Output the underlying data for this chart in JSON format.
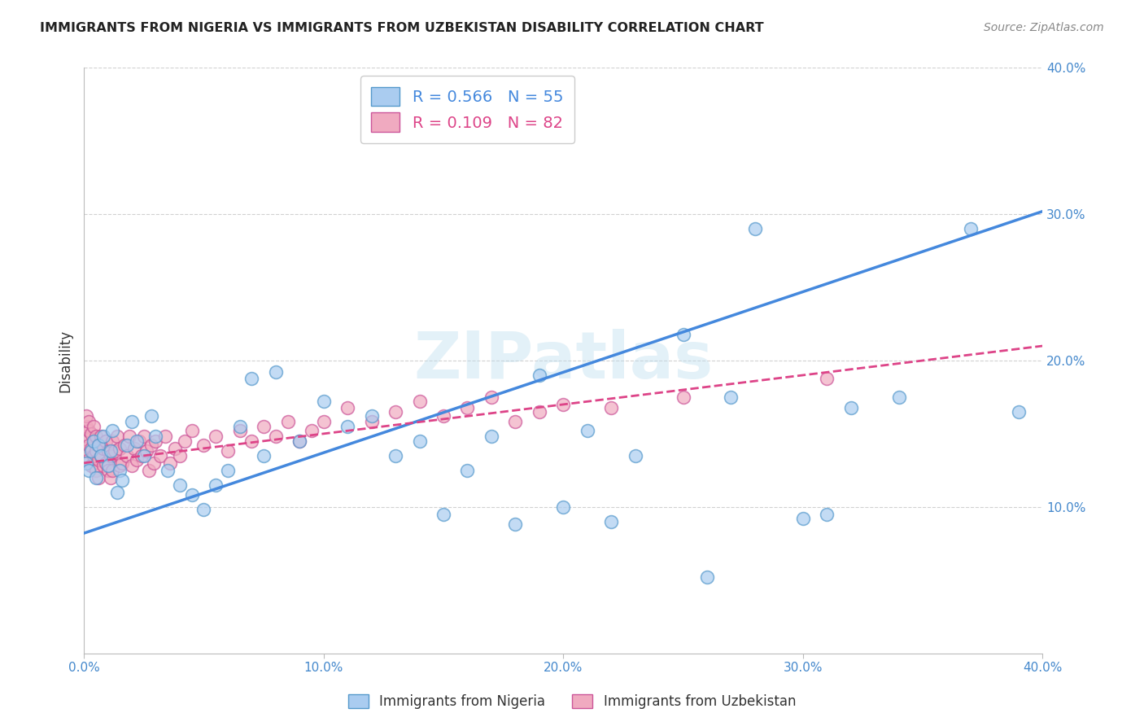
{
  "title": "IMMIGRANTS FROM NIGERIA VS IMMIGRANTS FROM UZBEKISTAN DISABILITY CORRELATION CHART",
  "source": "Source: ZipAtlas.com",
  "ylabel": "Disability",
  "xlim": [
    0.0,
    0.4
  ],
  "ylim": [
    0.0,
    0.4
  ],
  "xticks": [
    0.0,
    0.1,
    0.2,
    0.3,
    0.4
  ],
  "yticks": [
    0.1,
    0.2,
    0.3,
    0.4
  ],
  "xticklabels": [
    "0.0%",
    "10.0%",
    "20.0%",
    "30.0%",
    "40.0%"
  ],
  "yticklabels": [
    "10.0%",
    "20.0%",
    "30.0%",
    "40.0%"
  ],
  "nigeria_color": "#aaccf0",
  "uzbekistan_color": "#f0aac0",
  "nigeria_edge": "#5599cc",
  "uzbekistan_edge": "#cc5599",
  "nigeria_R": 0.566,
  "nigeria_N": 55,
  "uzbekistan_R": 0.109,
  "uzbekistan_N": 82,
  "nigeria_line_color": "#4488dd",
  "uzbekistan_line_color": "#dd4488",
  "watermark": "ZIPatlas",
  "legend_label_nigeria": "Immigrants from Nigeria",
  "legend_label_uzbekistan": "Immigrants from Uzbekistan",
  "nigeria_line_x0": 0.0,
  "nigeria_line_y0": 0.082,
  "nigeria_line_x1": 0.4,
  "nigeria_line_y1": 0.302,
  "uzbekistan_line_x0": 0.0,
  "uzbekistan_line_y0": 0.13,
  "uzbekistan_line_x1": 0.4,
  "uzbekistan_line_y1": 0.21,
  "nigeria_x": [
    0.001,
    0.002,
    0.003,
    0.004,
    0.005,
    0.006,
    0.007,
    0.008,
    0.01,
    0.011,
    0.012,
    0.014,
    0.015,
    0.016,
    0.018,
    0.02,
    0.022,
    0.025,
    0.028,
    0.03,
    0.035,
    0.04,
    0.045,
    0.05,
    0.055,
    0.06,
    0.065,
    0.07,
    0.075,
    0.08,
    0.09,
    0.1,
    0.11,
    0.12,
    0.13,
    0.14,
    0.15,
    0.16,
    0.17,
    0.18,
    0.19,
    0.2,
    0.21,
    0.22,
    0.23,
    0.25,
    0.26,
    0.27,
    0.28,
    0.3,
    0.31,
    0.32,
    0.34,
    0.37,
    0.39
  ],
  "nigeria_y": [
    0.13,
    0.125,
    0.138,
    0.145,
    0.12,
    0.142,
    0.135,
    0.148,
    0.128,
    0.138,
    0.152,
    0.11,
    0.125,
    0.118,
    0.142,
    0.158,
    0.145,
    0.135,
    0.162,
    0.148,
    0.125,
    0.115,
    0.108,
    0.098,
    0.115,
    0.125,
    0.155,
    0.188,
    0.135,
    0.192,
    0.145,
    0.172,
    0.155,
    0.162,
    0.135,
    0.145,
    0.095,
    0.125,
    0.148,
    0.088,
    0.19,
    0.1,
    0.152,
    0.09,
    0.135,
    0.218,
    0.052,
    0.175,
    0.29,
    0.092,
    0.095,
    0.168,
    0.175,
    0.29,
    0.165
  ],
  "uzbekistan_x": [
    0.001,
    0.001,
    0.001,
    0.001,
    0.002,
    0.002,
    0.002,
    0.002,
    0.003,
    0.003,
    0.003,
    0.004,
    0.004,
    0.004,
    0.005,
    0.005,
    0.005,
    0.006,
    0.006,
    0.006,
    0.007,
    0.007,
    0.008,
    0.008,
    0.009,
    0.009,
    0.01,
    0.01,
    0.011,
    0.011,
    0.012,
    0.012,
    0.013,
    0.014,
    0.015,
    0.015,
    0.016,
    0.017,
    0.018,
    0.019,
    0.02,
    0.021,
    0.022,
    0.023,
    0.024,
    0.025,
    0.026,
    0.027,
    0.028,
    0.029,
    0.03,
    0.032,
    0.034,
    0.036,
    0.038,
    0.04,
    0.042,
    0.045,
    0.05,
    0.055,
    0.06,
    0.065,
    0.07,
    0.075,
    0.08,
    0.085,
    0.09,
    0.095,
    0.1,
    0.11,
    0.12,
    0.13,
    0.14,
    0.15,
    0.16,
    0.17,
    0.18,
    0.19,
    0.2,
    0.22,
    0.25,
    0.31
  ],
  "uzbekistan_y": [
    0.138,
    0.148,
    0.155,
    0.162,
    0.132,
    0.142,
    0.152,
    0.158,
    0.128,
    0.14,
    0.15,
    0.135,
    0.145,
    0.155,
    0.125,
    0.138,
    0.148,
    0.12,
    0.132,
    0.142,
    0.135,
    0.148,
    0.128,
    0.14,
    0.13,
    0.145,
    0.125,
    0.138,
    0.12,
    0.135,
    0.145,
    0.125,
    0.138,
    0.148,
    0.128,
    0.14,
    0.13,
    0.142,
    0.135,
    0.148,
    0.128,
    0.14,
    0.132,
    0.145,
    0.135,
    0.148,
    0.138,
    0.125,
    0.142,
    0.13,
    0.145,
    0.135,
    0.148,
    0.13,
    0.14,
    0.135,
    0.145,
    0.152,
    0.142,
    0.148,
    0.138,
    0.152,
    0.145,
    0.155,
    0.148,
    0.158,
    0.145,
    0.152,
    0.158,
    0.168,
    0.158,
    0.165,
    0.172,
    0.162,
    0.168,
    0.175,
    0.158,
    0.165,
    0.17,
    0.168,
    0.175,
    0.188
  ]
}
